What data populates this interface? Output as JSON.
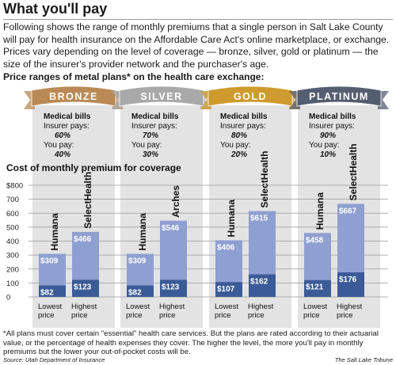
{
  "title": "What you'll pay",
  "intro": "Following shows the range of monthly premiums that a single person in Salt Lake County will pay for health insurance on the Affordable Care Act's online marketplace, or exchange. Prices vary depending on the level of coverage — bronze, silver, gold or platinum — the size of the insurer's provider network and the purchaser's age.",
  "footnote": "*All plans must cover certain \"essential\" health care services. But the plans are rated according to their actuarial value, or the percentage of health expenses they cover. The higher the level, the more you'll pay in monthly premiums but the lower your out-of-pocket costs will be.",
  "source": "Source: Utah Department of Insurance",
  "credit": "The Salt Lake Tribune",
  "colors": {
    "bronze": "#b98a55",
    "silver": "#a9a9a9",
    "gold": "#cf9a2e",
    "platinum": "#555d70",
    "bar_upper": "#8f9fd1",
    "bar_lower": "#3b5b98",
    "panel": "#e3e3e3"
  },
  "chart_data": {
    "type": "bar",
    "title": "Price ranges of metal plans* on the health care exchange:",
    "ylabel": "Cost of monthly premium for coverage",
    "ylim": [
      0,
      800
    ],
    "yticks": [
      "$800",
      "700",
      "600",
      "500",
      "400",
      "300",
      "200",
      "100",
      "0"
    ],
    "ytick_values": [
      800,
      700,
      600,
      500,
      400,
      300,
      200,
      100,
      0
    ],
    "coverage_heading": "Medical bills",
    "insurer_label": "Insurer pays:",
    "you_label": "You pay:",
    "x_labels": [
      "Lowest price",
      "Highest price"
    ],
    "groups": [
      {
        "tier": "BRONZE",
        "insurer_pays": "60%",
        "you_pay": "40%",
        "bars": [
          {
            "name": "Humana",
            "value": 309,
            "label": "$309",
            "low": 82,
            "low_label": "$82"
          },
          {
            "name": "SelectHealth",
            "value": 466,
            "label": "$466",
            "low": 123,
            "low_label": "$123"
          }
        ]
      },
      {
        "tier": "SILVER",
        "insurer_pays": "70%",
        "you_pay": "30%",
        "bars": [
          {
            "name": "Humana",
            "value": 309,
            "label": "$309",
            "low": 82,
            "low_label": "$82"
          },
          {
            "name": "Arches",
            "value": 546,
            "label": "$546",
            "low": 123,
            "low_label": "$123"
          }
        ]
      },
      {
        "tier": "GOLD",
        "insurer_pays": "80%",
        "you_pay": "20%",
        "bars": [
          {
            "name": "Humana",
            "value": 406,
            "label": "$406",
            "low": 107,
            "low_label": "$107"
          },
          {
            "name": "SelectHealth",
            "value": 615,
            "label": "$615",
            "low": 162,
            "low_label": "$162"
          }
        ]
      },
      {
        "tier": "PLATINUM",
        "insurer_pays": "90%",
        "you_pay": "10%",
        "bars": [
          {
            "name": "Humana",
            "value": 458,
            "label": "$458",
            "low": 121,
            "low_label": "$121"
          },
          {
            "name": "SelectHealth",
            "value": 667,
            "label": "$667",
            "low": 176,
            "low_label": "$176"
          }
        ]
      }
    ]
  }
}
